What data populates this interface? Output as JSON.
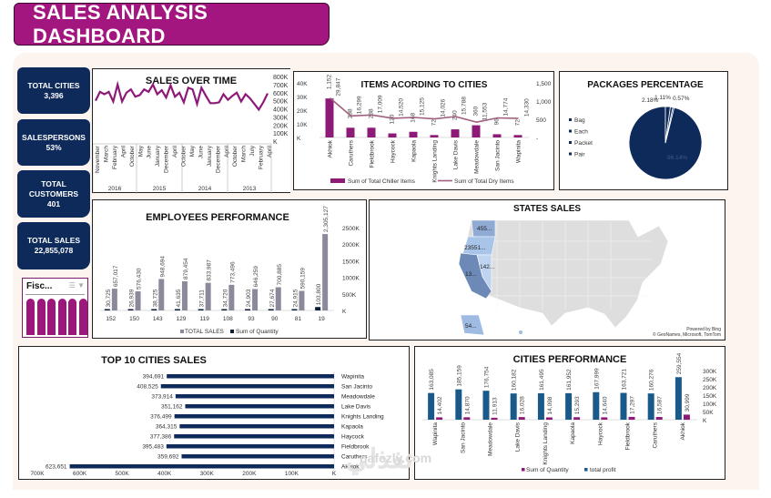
{
  "header": {
    "title": "SALES ANALYSIS DASHBOARD"
  },
  "kpis": [
    {
      "label": "TOTAL CITIES",
      "value": "3,396"
    },
    {
      "label": "SALESPERSONS",
      "value": "53%"
    },
    {
      "label": "TOTAL CUSTOMERS",
      "value": "401"
    },
    {
      "label": "TOTAL SALES",
      "value": "22,855,078"
    }
  ],
  "slicer": {
    "title": "Fisc...",
    "multiselect_icon": "multi-select-icon",
    "clear_filter_icon": "clear-filter-icon",
    "tile_count": 6
  },
  "colors": {
    "brand": "#a3167f",
    "navy": "#0e2a5a",
    "teal": "#1a5a8a",
    "grey_bar": "#8a8a9a",
    "mauve_line": "#a0607e"
  },
  "watermark": {
    "arabic": "نفذلي",
    "latin": "nafezly.com"
  },
  "chart_data": [
    {
      "id": "sales_over_time",
      "type": "line",
      "title": "SALES OVER TIME",
      "series": [
        {
          "name": "Sales",
          "values": [
            500,
            610,
            580,
            610,
            490,
            700,
            490,
            600,
            640,
            550,
            570,
            640,
            610,
            700,
            580,
            630,
            540,
            690,
            550,
            600,
            480,
            660,
            640,
            460,
            660,
            560,
            470,
            470,
            480,
            580,
            510,
            560,
            600,
            490,
            580,
            530,
            460,
            390,
            480,
            590
          ]
        }
      ],
      "ylim": [
        0,
        800
      ],
      "yticks": [
        "800K",
        "700K",
        "600K",
        "500K",
        "400K",
        "300K",
        "200K",
        "100K",
        "K"
      ],
      "xtick_labels": [
        "November",
        "March",
        "February",
        "April",
        "October",
        "May",
        "June",
        "January",
        "December",
        "April",
        "October",
        "May",
        "June",
        "January",
        "December",
        "April",
        "October",
        "March",
        "July",
        "February",
        "April"
      ],
      "year_groups": [
        "2016",
        "2015",
        "2014",
        "2013"
      ]
    },
    {
      "id": "items_according_to_cities",
      "type": "bar",
      "title": "ITEMS ACORDING TO CITIES",
      "categories": [
        "Akhiok",
        "Caruthers",
        "Fieldbrook",
        "Haycock",
        "Kapaola",
        "Knights Landing",
        "Lake Davis",
        "Meadowdale",
        "San Jacinto",
        "Wapinita"
      ],
      "series": [
        {
          "name": "Sum of Total Chiller Items",
          "type": "bar",
          "axis": "right",
          "values": [
            1152,
            288,
            288,
            120,
            168,
            72,
            240,
            360,
            96,
            72
          ],
          "labels": [
            "1,152",
            "288",
            "288",
            "120",
            "168",
            "72",
            "240",
            "360",
            "96",
            "72"
          ]
        },
        {
          "name": "Sum of Total Dry Items",
          "type": "line",
          "axis": "left",
          "values": [
            29847,
            16299,
            17009,
            14520,
            15125,
            14026,
            15788,
            11553,
            14774,
            14330
          ],
          "labels": [
            "29,847",
            "16,299",
            "17,009",
            "14,520",
            "15,125",
            "14,026",
            "15,788",
            "11,553",
            "14,774",
            "14,330"
          ]
        }
      ],
      "ylim_left": [
        0,
        40000
      ],
      "yticks_left": [
        "40K",
        "30K",
        "20K",
        "10K",
        "K"
      ],
      "ylim_right": [
        0,
        1500
      ],
      "yticks_right": [
        "1,500",
        "1,000",
        "500",
        "-"
      ]
    },
    {
      "id": "packages_percentage",
      "type": "pie",
      "title": "PACKAGES PERCENTAGE",
      "legend": [
        "Bag",
        "Each",
        "Packet",
        "Pair"
      ],
      "values": [
        96.14,
        2.18,
        1.11,
        0.57
      ],
      "labels": [
        "96.14%",
        "2.18%",
        "1.11%",
        "0.57%"
      ],
      "legend_position": "left"
    },
    {
      "id": "employees_performance",
      "type": "bar",
      "title": "EMPLOYEES PERFORMANCE",
      "categories": [
        "152",
        "150",
        "143",
        "129",
        "119",
        "108",
        "93",
        "90",
        "81",
        "19"
      ],
      "series": [
        {
          "name": "TOTAL SALES",
          "values": [
            657017,
            576430,
            948694,
            879454,
            833987,
            773496,
            646259,
            700885,
            590159,
            2305127
          ],
          "labels": [
            "657,017",
            "576,430",
            "948,694",
            "879,454",
            "833,987",
            "773,496",
            "646,259",
            "700,885",
            "590,159",
            "2,305,127"
          ]
        },
        {
          "name": "Sum of Quantity",
          "values": [
            30725,
            26939,
            38725,
            41635,
            37711,
            34720,
            24903,
            27674,
            24915,
            103800
          ],
          "labels": [
            "30,725",
            "26,939",
            "38,725",
            "41,635",
            "37,711",
            "34,720",
            "24,903",
            "27,674",
            "24,915",
            "103,800"
          ]
        }
      ],
      "ylim": [
        0,
        2500000
      ],
      "yticks": [
        "2500K",
        "2000K",
        "1500K",
        "1000K",
        "500K",
        "K"
      ]
    },
    {
      "id": "states_sales",
      "type": "map",
      "title": "STATES SALES",
      "regions": [
        {
          "state": "Washington",
          "label": "455..."
        },
        {
          "state": "Oregon",
          "label": "23551..."
        },
        {
          "state": "Nevada",
          "label": "142..."
        },
        {
          "state": "California",
          "label": "13..."
        },
        {
          "state": "Alaska",
          "label": "54..."
        }
      ],
      "credits": [
        "Powered by Bing",
        "© GeoNames, Microsoft, TomTom"
      ]
    },
    {
      "id": "top_10_cities_sales",
      "type": "bar",
      "orientation": "horizontal",
      "title": "TOP 10 CITIES SALES",
      "categories": [
        "Wapinita",
        "San Jacinto",
        "Meadowdale",
        "Lake Davis",
        "Knights Landing",
        "Kapaola",
        "Haycock",
        "Fieldbrook",
        "Caruthers",
        "Akhiok"
      ],
      "values": [
        394691,
        408525,
        373914,
        351162,
        376499,
        364315,
        377386,
        395483,
        359692,
        623651
      ],
      "labels": [
        "394,691",
        "408,525",
        "373,914",
        "351,162",
        "376,499",
        "364,315",
        "377,386",
        "395,483",
        "359,692",
        "623,651"
      ],
      "xlim": [
        0,
        700000
      ],
      "xticks": [
        "700K",
        "600K",
        "500K",
        "400K",
        "300K",
        "200K",
        "100K",
        "K"
      ]
    },
    {
      "id": "cities_performance",
      "type": "bar",
      "title": "CITIES PERFORMANCE",
      "categories": [
        "Wapinita",
        "San Jacinto",
        "Meadowdale",
        "Lake Davis",
        "Knights Landing",
        "Kapaola",
        "Haycock",
        "Fieldbrook",
        "Caruthers",
        "Akhiok"
      ],
      "series": [
        {
          "name": "total profit",
          "values": [
            163085,
            185159,
            176754,
            160182,
            161495,
            161952,
            167999,
            163721,
            160276,
            259554
          ],
          "labels": [
            "163,085",
            "185,159",
            "176,754",
            "160,182",
            "161,495",
            "161,952",
            "167,999",
            "163,721",
            "160,276",
            "259,554"
          ]
        },
        {
          "name": "Sum of Quantity",
          "values": [
            14402,
            14870,
            11913,
            16028,
            14098,
            15293,
            14640,
            17297,
            16587,
            30999
          ],
          "labels": [
            "14,402",
            "14,870",
            "11,913",
            "16,028",
            "14,098",
            "15,293",
            "14,640",
            "17,297",
            "16,587",
            "30,999"
          ]
        }
      ],
      "ylim": [
        0,
        300000
      ],
      "yticks": [
        "300K",
        "250K",
        "200K",
        "150K",
        "100K",
        "50K",
        "K"
      ]
    }
  ]
}
